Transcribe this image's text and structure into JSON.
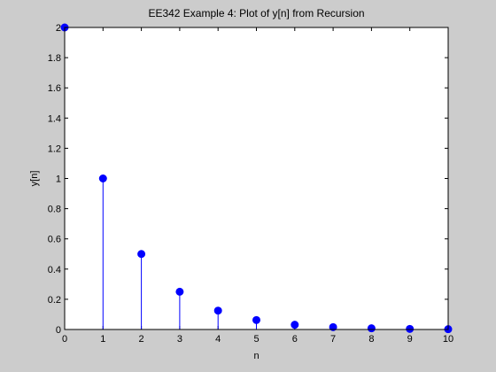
{
  "chart_data": {
    "type": "stem",
    "title": "EE342 Example 4: Plot of y[n] from Recursion",
    "xlabel": "n",
    "ylabel": "y[n]",
    "xlim": [
      0,
      10
    ],
    "ylim": [
      0,
      2
    ],
    "x_ticks": [
      0,
      1,
      2,
      3,
      4,
      5,
      6,
      7,
      8,
      9,
      10
    ],
    "y_ticks": [
      0,
      0.2,
      0.4,
      0.6,
      0.8,
      1,
      1.2,
      1.4,
      1.6,
      1.8,
      2
    ],
    "x_tick_labels": [
      "0",
      "1",
      "2",
      "3",
      "4",
      "5",
      "6",
      "7",
      "8",
      "9",
      "10"
    ],
    "y_tick_labels": [
      "0",
      "0.2",
      "0.4",
      "0.6",
      "0.8",
      "1",
      "1.2",
      "1.4",
      "1.6",
      "1.8",
      "2"
    ],
    "grid": false,
    "series": [
      {
        "x": [
          0,
          1,
          2,
          3,
          4,
          5,
          6,
          7,
          8,
          9,
          10
        ],
        "values": [
          2,
          1,
          0.5,
          0.25,
          0.125,
          0.0625,
          0.03125,
          0.015625,
          0.0078125,
          0.00390625,
          0.001953125
        ],
        "color": "#0000ff"
      }
    ]
  }
}
